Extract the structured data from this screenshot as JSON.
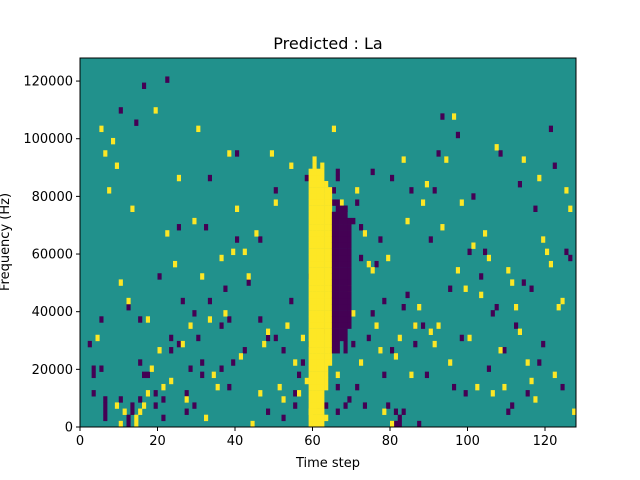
{
  "chart_data": {
    "type": "heatmap",
    "title": "Predicted : La",
    "xlabel": "Time step",
    "ylabel": "Frequency (Hz)",
    "xlim": [
      0,
      128
    ],
    "ylim": [
      0,
      128000
    ],
    "x_ticks": [
      "0",
      "20",
      "40",
      "60",
      "80",
      "100",
      "120"
    ],
    "y_ticks": [
      "0",
      "20000",
      "40000",
      "60000",
      "80000",
      "100000",
      "120000"
    ],
    "colors": {
      "background": "#21918c",
      "low": "#440154",
      "high": "#fde725"
    },
    "grid": false,
    "legend": "none",
    "n_time_steps": 128,
    "n_frequency_bins": 60,
    "bin_hz": 2133.33,
    "cells_low": [
      [
        2,
        13
      ],
      [
        3,
        9
      ],
      [
        3,
        8
      ],
      [
        3,
        5
      ],
      [
        5,
        17
      ],
      [
        5,
        9
      ],
      [
        6,
        1
      ],
      [
        6,
        2
      ],
      [
        6,
        3
      ],
      [
        6,
        4
      ],
      [
        10,
        51
      ],
      [
        10,
        4
      ],
      [
        12,
        19
      ],
      [
        12,
        0
      ],
      [
        12,
        1
      ],
      [
        13,
        2
      ],
      [
        13,
        3
      ],
      [
        14,
        49
      ],
      [
        15,
        17
      ],
      [
        15,
        4
      ],
      [
        15,
        10
      ],
      [
        16,
        55
      ],
      [
        16,
        8
      ],
      [
        17,
        8
      ],
      [
        19,
        5
      ],
      [
        19,
        3
      ],
      [
        20,
        24
      ],
      [
        21,
        4
      ],
      [
        21,
        1
      ],
      [
        22,
        56
      ],
      [
        23,
        12
      ],
      [
        23,
        14
      ],
      [
        25,
        32
      ],
      [
        25,
        13
      ],
      [
        26,
        20
      ],
      [
        27,
        2
      ],
      [
        27,
        5
      ],
      [
        28,
        9
      ],
      [
        29,
        18
      ],
      [
        29,
        3
      ],
      [
        30,
        14
      ],
      [
        31,
        10
      ],
      [
        31,
        8
      ],
      [
        32,
        32
      ],
      [
        33,
        40
      ],
      [
        33,
        20
      ],
      [
        36,
        16
      ],
      [
        36,
        9
      ],
      [
        37,
        22
      ],
      [
        38,
        17
      ],
      [
        38,
        6
      ],
      [
        39,
        10
      ],
      [
        40,
        44
      ],
      [
        40,
        30
      ],
      [
        42,
        12
      ],
      [
        43,
        23
      ],
      [
        46,
        30
      ],
      [
        46,
        17
      ],
      [
        48,
        14
      ],
      [
        48,
        2
      ],
      [
        50,
        38
      ],
      [
        50,
        14
      ],
      [
        52,
        12
      ],
      [
        52,
        1
      ],
      [
        54,
        20
      ],
      [
        55,
        3
      ],
      [
        55,
        5
      ],
      [
        56,
        8
      ],
      [
        57,
        10
      ],
      [
        58,
        40
      ],
      [
        59,
        13
      ],
      [
        59,
        24
      ],
      [
        60,
        17
      ],
      [
        60,
        7
      ],
      [
        62,
        15
      ],
      [
        63,
        3
      ],
      [
        64,
        34
      ],
      [
        64,
        30
      ],
      [
        65,
        36
      ],
      [
        65,
        38
      ],
      [
        66,
        2
      ],
      [
        66,
        6
      ],
      [
        66,
        40
      ],
      [
        66,
        41
      ],
      [
        67,
        34
      ],
      [
        68,
        35
      ],
      [
        68,
        3
      ],
      [
        69,
        4
      ],
      [
        70,
        33
      ],
      [
        70,
        13
      ],
      [
        71,
        36
      ],
      [
        71,
        6
      ],
      [
        72,
        32
      ],
      [
        72,
        27
      ],
      [
        73,
        3
      ],
      [
        74,
        14
      ],
      [
        75,
        41
      ],
      [
        75,
        18
      ],
      [
        76,
        26
      ],
      [
        77,
        30
      ],
      [
        78,
        8
      ],
      [
        78,
        20
      ],
      [
        79,
        3
      ],
      [
        80,
        40
      ],
      [
        80,
        12
      ],
      [
        81,
        2
      ],
      [
        81,
        0
      ],
      [
        82,
        0
      ],
      [
        82,
        1
      ],
      [
        83,
        2
      ],
      [
        83,
        19
      ],
      [
        84,
        21
      ],
      [
        85,
        38
      ],
      [
        86,
        13
      ],
      [
        86,
        16
      ],
      [
        87,
        0
      ],
      [
        88,
        16
      ],
      [
        89,
        8
      ],
      [
        90,
        30
      ],
      [
        91,
        38
      ],
      [
        92,
        44
      ],
      [
        93,
        50
      ],
      [
        95,
        22
      ],
      [
        96,
        6
      ],
      [
        97,
        47
      ],
      [
        98,
        14
      ],
      [
        99,
        5
      ],
      [
        100,
        28
      ],
      [
        101,
        37
      ],
      [
        103,
        24
      ],
      [
        104,
        28
      ],
      [
        105,
        9
      ],
      [
        106,
        18
      ],
      [
        107,
        19
      ],
      [
        108,
        44
      ],
      [
        109,
        12
      ],
      [
        110,
        2
      ],
      [
        111,
        3
      ],
      [
        112,
        16
      ],
      [
        113,
        39
      ],
      [
        114,
        23
      ],
      [
        115,
        5
      ],
      [
        116,
        22
      ],
      [
        117,
        35
      ],
      [
        118,
        10
      ],
      [
        119,
        13
      ],
      [
        121,
        48
      ],
      [
        122,
        42
      ],
      [
        124,
        6
      ],
      [
        125,
        28
      ],
      [
        126,
        27
      ]
    ],
    "cells_high": [
      [
        4,
        14
      ],
      [
        5,
        48
      ],
      [
        6,
        44
      ],
      [
        7,
        38
      ],
      [
        8,
        46
      ],
      [
        9,
        42
      ],
      [
        9,
        3
      ],
      [
        10,
        23
      ],
      [
        10,
        0
      ],
      [
        11,
        2
      ],
      [
        12,
        20
      ],
      [
        13,
        35
      ],
      [
        14,
        0
      ],
      [
        14,
        1
      ],
      [
        15,
        2
      ],
      [
        16,
        3
      ],
      [
        17,
        17
      ],
      [
        17,
        5
      ],
      [
        18,
        9
      ],
      [
        19,
        51
      ],
      [
        20,
        12
      ],
      [
        21,
        6
      ],
      [
        22,
        31
      ],
      [
        23,
        7
      ],
      [
        24,
        26
      ],
      [
        25,
        40
      ],
      [
        26,
        13
      ],
      [
        27,
        4
      ],
      [
        28,
        16
      ],
      [
        29,
        33
      ],
      [
        30,
        48
      ],
      [
        31,
        24
      ],
      [
        32,
        1
      ],
      [
        33,
        17
      ],
      [
        34,
        8
      ],
      [
        35,
        6
      ],
      [
        36,
        27
      ],
      [
        37,
        18
      ],
      [
        38,
        44
      ],
      [
        39,
        28
      ],
      [
        40,
        35
      ],
      [
        41,
        11
      ],
      [
        42,
        28
      ],
      [
        43,
        24
      ],
      [
        44,
        0
      ],
      [
        45,
        31
      ],
      [
        46,
        5
      ],
      [
        47,
        13
      ],
      [
        48,
        15
      ],
      [
        49,
        44
      ],
      [
        50,
        36
      ],
      [
        51,
        6
      ],
      [
        52,
        4
      ],
      [
        53,
        16
      ],
      [
        54,
        42
      ],
      [
        55,
        10
      ],
      [
        56,
        5
      ],
      [
        57,
        14
      ],
      [
        58,
        7
      ],
      [
        59,
        2
      ],
      [
        60,
        3
      ],
      [
        63,
        1
      ],
      [
        64,
        24
      ],
      [
        65,
        48
      ],
      [
        66,
        8
      ],
      [
        67,
        36
      ],
      [
        68,
        30
      ],
      [
        69,
        22
      ],
      [
        70,
        18
      ],
      [
        71,
        38
      ],
      [
        72,
        10
      ],
      [
        73,
        31
      ],
      [
        74,
        26
      ],
      [
        75,
        25
      ],
      [
        76,
        16
      ],
      [
        77,
        12
      ],
      [
        78,
        2
      ],
      [
        79,
        27
      ],
      [
        80,
        0
      ],
      [
        81,
        11
      ],
      [
        82,
        14
      ],
      [
        83,
        43
      ],
      [
        84,
        33
      ],
      [
        85,
        8
      ],
      [
        86,
        16
      ],
      [
        87,
        19
      ],
      [
        88,
        36
      ],
      [
        89,
        39
      ],
      [
        90,
        15
      ],
      [
        91,
        13
      ],
      [
        92,
        16
      ],
      [
        93,
        32
      ],
      [
        94,
        43
      ],
      [
        95,
        10
      ],
      [
        96,
        50
      ],
      [
        97,
        25
      ],
      [
        98,
        36
      ],
      [
        99,
        22
      ],
      [
        100,
        14
      ],
      [
        101,
        29
      ],
      [
        102,
        6
      ],
      [
        103,
        21
      ],
      [
        104,
        31
      ],
      [
        105,
        27
      ],
      [
        106,
        5
      ],
      [
        107,
        45
      ],
      [
        108,
        12
      ],
      [
        109,
        6
      ],
      [
        110,
        25
      ],
      [
        111,
        23
      ],
      [
        112,
        19
      ],
      [
        113,
        15
      ],
      [
        114,
        43
      ],
      [
        115,
        10
      ],
      [
        116,
        7
      ],
      [
        117,
        4
      ],
      [
        118,
        40
      ],
      [
        119,
        30
      ],
      [
        120,
        28
      ],
      [
        121,
        26
      ],
      [
        122,
        8
      ],
      [
        123,
        19
      ],
      [
        124,
        20
      ],
      [
        125,
        38
      ],
      [
        126,
        35
      ],
      [
        127,
        2
      ]
    ],
    "vertical_bands": [
      {
        "time": 59,
        "bins": [
          0,
          41
        ],
        "level": "high"
      },
      {
        "time": 60,
        "bins": [
          0,
          43
        ],
        "level": "high"
      },
      {
        "time": 61,
        "bins": [
          0,
          41
        ],
        "level": "high"
      },
      {
        "time": 62,
        "bins": [
          0,
          42
        ],
        "level": "high"
      },
      {
        "time": 63,
        "bins": [
          6,
          39
        ],
        "level": "high"
      },
      {
        "time": 64,
        "bins": [
          10,
          38
        ],
        "level": "high"
      },
      {
        "time": 65,
        "bins": [
          12,
          34
        ],
        "level": "low"
      },
      {
        "time": 66,
        "bins": [
          12,
          36
        ],
        "level": "low"
      },
      {
        "time": 67,
        "bins": [
          14,
          35
        ],
        "level": "low"
      },
      {
        "time": 68,
        "bins": [
          12,
          35
        ],
        "level": "low"
      },
      {
        "time": 69,
        "bins": [
          16,
          33
        ],
        "level": "low"
      }
    ]
  }
}
